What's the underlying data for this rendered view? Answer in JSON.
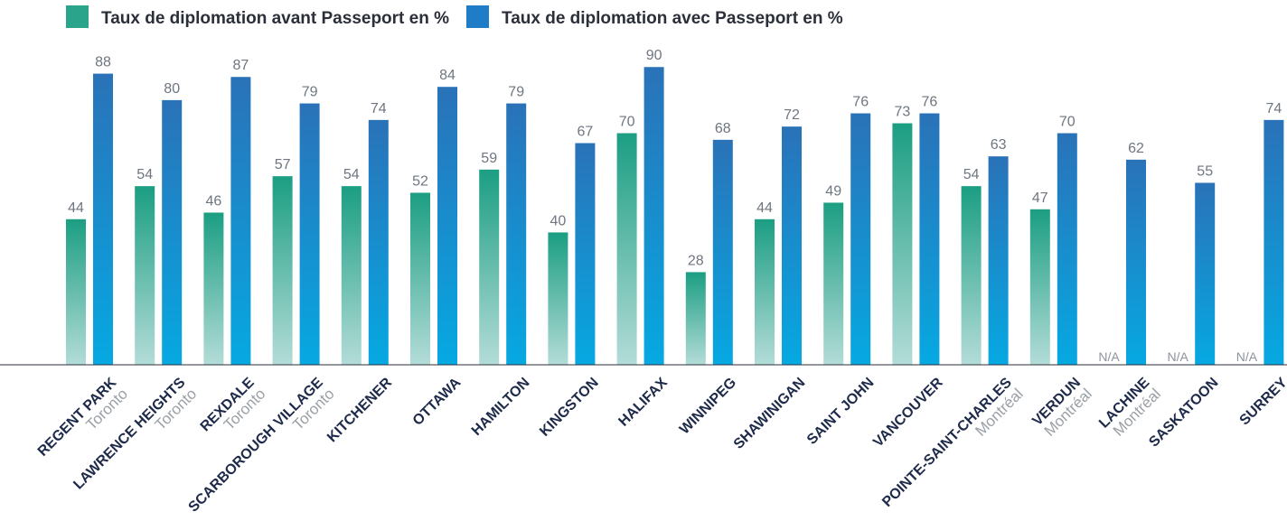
{
  "chart_data": {
    "type": "bar",
    "title": "",
    "xlabel": "",
    "ylabel": "",
    "ylim": [
      0,
      100
    ],
    "grid": false,
    "legend_position": "top-left",
    "colors": {
      "before_top": "#1b9e82",
      "before_bottom": "#b3dcd7",
      "after_top": "#2a72b8",
      "after_bottom": "#06a9e2",
      "legend_before": "#2aa58c",
      "legend_after": "#1f7cc6",
      "axis": "#2b2f3a"
    },
    "legend": [
      {
        "key": "before",
        "label": "Taux de diplomation avant Passeport en %"
      },
      {
        "key": "after",
        "label": "Taux de diplomation avec Passeport en %"
      }
    ],
    "na_label": "N/A",
    "categories": [
      {
        "name": "REGENT PARK",
        "sub": "Toronto"
      },
      {
        "name": "LAWRENCE HEIGHTS",
        "sub": "Toronto"
      },
      {
        "name": "REXDALE",
        "sub": "Toronto"
      },
      {
        "name": "SCARBOROUGH VILLAGE",
        "sub": "Toronto"
      },
      {
        "name": "KITCHENER",
        "sub": ""
      },
      {
        "name": "OTTAWA",
        "sub": ""
      },
      {
        "name": "HAMILTON",
        "sub": ""
      },
      {
        "name": "KINGSTON",
        "sub": ""
      },
      {
        "name": "HALIFAX",
        "sub": ""
      },
      {
        "name": "WINNIPEG",
        "sub": ""
      },
      {
        "name": "SHAWINIGAN",
        "sub": ""
      },
      {
        "name": "SAINT JOHN",
        "sub": ""
      },
      {
        "name": "VANCOUVER",
        "sub": ""
      },
      {
        "name": "POINTE-SAINT-CHARLES",
        "sub": "Montréal"
      },
      {
        "name": "VERDUN",
        "sub": "Montréal"
      },
      {
        "name": "LACHINE",
        "sub": "Montréal"
      },
      {
        "name": "SASKATOON",
        "sub": ""
      },
      {
        "name": "SURREY",
        "sub": ""
      }
    ],
    "series": [
      {
        "name": "Taux de diplomation avant Passeport en %",
        "key": "before",
        "values": [
          44,
          54,
          46,
          57,
          54,
          52,
          59,
          40,
          70,
          28,
          44,
          49,
          73,
          54,
          47,
          null,
          null,
          null
        ]
      },
      {
        "name": "Taux de diplomation avec Passeport en %",
        "key": "after",
        "values": [
          88,
          80,
          87,
          79,
          74,
          84,
          79,
          67,
          90,
          68,
          72,
          76,
          76,
          63,
          70,
          62,
          55,
          74
        ]
      }
    ]
  }
}
